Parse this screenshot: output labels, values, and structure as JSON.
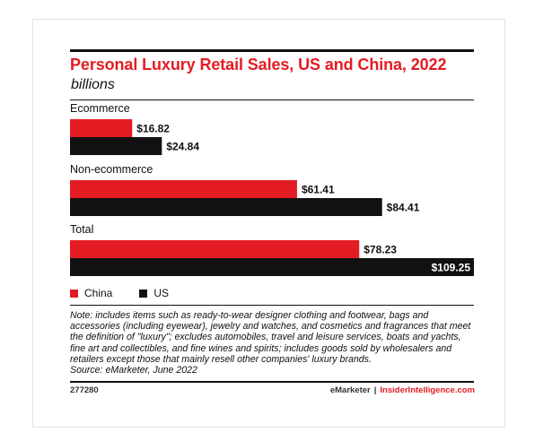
{
  "title": "Personal Luxury Retail Sales, US and China, 2022",
  "subtitle": "billions",
  "colors": {
    "accent": "#e31c23",
    "china": "#e31c23",
    "us": "#111111"
  },
  "chart_data": {
    "type": "bar",
    "orientation": "horizontal",
    "categories": [
      "Ecommerce",
      "Non-ecommerce",
      "Total"
    ],
    "series": [
      {
        "name": "China",
        "values": [
          16.82,
          61.41,
          78.23
        ],
        "labels": [
          "$16.82",
          "$61.41",
          "$78.23"
        ]
      },
      {
        "name": "US",
        "values": [
          24.84,
          84.41,
          109.25
        ],
        "labels": [
          "$24.84",
          "$84.41",
          "$109.25"
        ]
      }
    ],
    "xlim": [
      0,
      109.25
    ],
    "grid": false,
    "legend_position": "bottom-left"
  },
  "legend": [
    {
      "label": "China",
      "color": "#e31c23"
    },
    {
      "label": "US",
      "color": "#111111"
    }
  ],
  "note": "Note: includes items such as ready-to-wear designer clothing and footwear, bags and accessories (including eyewear), jewelry and watches, and cosmetics and fragrances that meet the definition of \"luxury\"; excludes automobiles, travel and leisure services, boats and yachts, fine art and collectibles, and fine wines and spirits; includes goods sold by wholesalers and retailers except those that mainly resell other companies' luxury brands.",
  "source": "Source: eMarketer, June 2022",
  "footer": {
    "id": "277280",
    "brand1": "eMarketer",
    "separator": "|",
    "brand2": "InsiderIntelligence.com"
  }
}
